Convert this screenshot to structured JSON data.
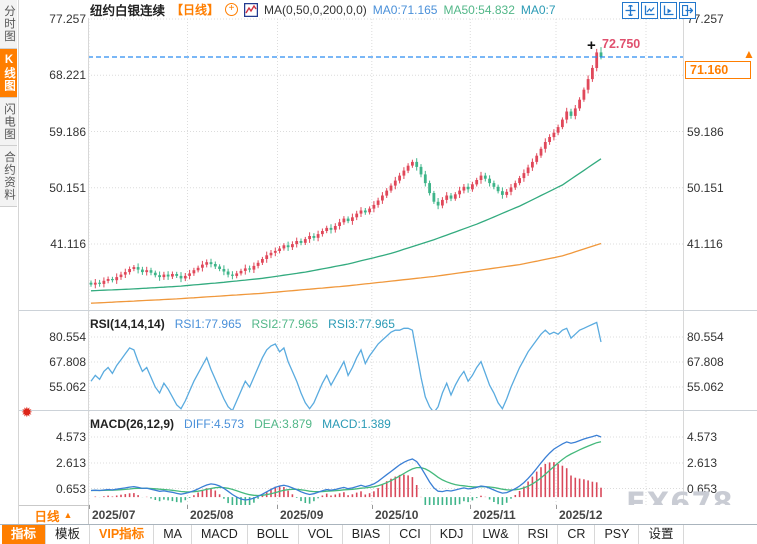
{
  "sidebar": {
    "tabs": [
      {
        "label": "分时图",
        "active": false
      },
      {
        "label": "K线图",
        "active": true
      },
      {
        "label": "闪电图",
        "active": false
      },
      {
        "label": "合约资料",
        "active": false
      }
    ]
  },
  "header": {
    "title": "纽约白银连续",
    "period_tag": "【日线】",
    "plus_icon": "+",
    "ma_label": "MA(0,50,0,200,0,0)",
    "ma0": "MA0:71.165",
    "ma50": "MA50:54.832",
    "ma0b": "MA0:7"
  },
  "toolbar_icons": [
    "pan-crosshair-icon",
    "axis-scale-icon",
    "axis-play-icon",
    "collapse-right-icon"
  ],
  "price_marker": {
    "high_label": "72.750",
    "current_label": "71.160",
    "crosshair": "+",
    "arrow": "▲"
  },
  "rsi_header": {
    "name": "RSI(14,14,14)",
    "rsi1": "RSI1:77.965",
    "rsi2": "RSI2:77.965",
    "rsi3": "RSI3:77.965"
  },
  "macd_header": {
    "name": "MACD(26,12,9)",
    "diff": "DIFF:4.573",
    "dea": "DEA:3.879",
    "macd": "MACD:1.389"
  },
  "xaxis": {
    "period_label": "日线",
    "period_arrow": "▲",
    "months": [
      "2025/07",
      "2025/08",
      "2025/09",
      "2025/10",
      "2025/11",
      "2025/12"
    ]
  },
  "bottom_tabs": [
    {
      "label": "指标",
      "style": "active"
    },
    {
      "label": "模板",
      "style": ""
    },
    {
      "label": "VIP指标",
      "style": "vip"
    },
    {
      "label": "MA",
      "style": ""
    },
    {
      "label": "MACD",
      "style": ""
    },
    {
      "label": "BOLL",
      "style": ""
    },
    {
      "label": "VOL",
      "style": ""
    },
    {
      "label": "BIAS",
      "style": ""
    },
    {
      "label": "CCI",
      "style": ""
    },
    {
      "label": "KDJ",
      "style": ""
    },
    {
      "label": "LW&",
      "style": ""
    },
    {
      "label": "RSI",
      "style": ""
    },
    {
      "label": "CR",
      "style": ""
    },
    {
      "label": "PSY",
      "style": ""
    },
    {
      "label": "设置",
      "style": ""
    }
  ],
  "watermark": "FX678",
  "colors": {
    "accent_orange": "#ff7e00",
    "candle_up": "#e0485a",
    "candle_down": "#3eb489",
    "ma50_line": "#33ab7f",
    "ma200_line": "#f0983c",
    "rsi_line": "#5aabdf",
    "diff_line": "#3a7fd5",
    "dea_line": "#45b97c",
    "hist_up": "#d9485a",
    "hist_down": "#3eb489",
    "price_line": "#2b8cf0",
    "high_label": "#e0506e",
    "grid": "#dcdcdc",
    "icon_blue": "#2277cc"
  },
  "chart_data": {
    "type": "candlestick",
    "instrument": "纽约白银连续",
    "period": "日线",
    "price_axis_ticks": [
      77.257,
      68.221,
      59.186,
      50.151,
      41.116
    ],
    "current_price": 71.16,
    "session_high": 72.75,
    "first_open": 34.9,
    "closes": [
      34.6,
      34.9,
      34.7,
      35.2,
      35.5,
      35.3,
      35.8,
      36.2,
      36.6,
      37.1,
      37.4,
      37.0,
      36.6,
      36.9,
      36.5,
      36.1,
      35.8,
      36.2,
      35.9,
      36.3,
      36.0,
      35.6,
      36.0,
      36.4,
      36.9,
      37.3,
      37.8,
      38.2,
      37.9,
      37.5,
      37.1,
      36.7,
      36.2,
      36.0,
      36.4,
      36.8,
      37.2,
      37.0,
      37.6,
      38.1,
      38.7,
      39.3,
      39.7,
      40.0,
      40.4,
      40.9,
      40.6,
      41.1,
      41.6,
      41.3,
      41.9,
      42.4,
      42.1,
      42.7,
      43.2,
      43.7,
      43.4,
      44.0,
      44.6,
      45.2,
      44.8,
      45.4,
      46.0,
      46.5,
      46.2,
      46.8,
      47.4,
      48.1,
      48.9,
      49.7,
      50.5,
      51.3,
      52.1,
      52.9,
      53.7,
      54.3,
      53.5,
      52.3,
      50.9,
      49.3,
      47.9,
      47.3,
      48.2,
      48.9,
      48.4,
      49.1,
      49.7,
      50.3,
      49.9,
      50.7,
      51.4,
      52.1,
      51.6,
      50.9,
      50.3,
      49.6,
      49.0,
      49.5,
      50.2,
      50.9,
      51.7,
      52.5,
      53.4,
      54.3,
      55.3,
      56.4,
      57.5,
      58.3,
      59.0,
      59.9,
      61.1,
      62.4,
      61.7,
      62.9,
      64.3,
      65.9,
      67.6,
      69.4,
      71.9,
      71.16
    ],
    "wick_pattern": [
      0.35,
      0.6,
      0.45,
      0.55,
      0.4
    ],
    "last_high": 72.75,
    "ma50_points": [
      [
        0,
        33.6
      ],
      [
        10,
        33.9
      ],
      [
        20,
        34.3
      ],
      [
        30,
        34.9
      ],
      [
        40,
        35.6
      ],
      [
        50,
        36.6
      ],
      [
        60,
        37.9
      ],
      [
        70,
        39.6
      ],
      [
        80,
        41.8
      ],
      [
        90,
        44.3
      ],
      [
        100,
        47.2
      ],
      [
        110,
        50.6
      ],
      [
        119,
        54.8
      ]
    ],
    "ma200_points": [
      [
        0,
        31.6
      ],
      [
        20,
        32.3
      ],
      [
        40,
        33.2
      ],
      [
        60,
        34.4
      ],
      [
        80,
        35.9
      ],
      [
        100,
        37.8
      ],
      [
        110,
        39.2
      ],
      [
        119,
        41.2
      ]
    ],
    "month_start_idx": [
      0,
      23,
      44,
      66,
      89,
      109,
      130
    ],
    "rsi": {
      "ticks": [
        80.554,
        67.808,
        55.062
      ],
      "current": 77.965,
      "values": [
        58,
        61,
        59,
        63,
        65,
        62,
        66,
        69,
        72,
        75,
        74,
        68,
        63,
        65,
        60,
        55,
        52,
        57,
        54,
        50,
        46,
        44,
        48,
        53,
        58,
        62,
        66,
        70,
        64,
        59,
        54,
        49,
        45,
        43,
        48,
        53,
        58,
        55,
        60,
        65,
        70,
        74,
        76,
        77,
        73,
        75,
        68,
        63,
        58,
        52,
        47,
        44,
        47,
        52,
        57,
        61,
        56,
        60,
        64,
        68,
        61,
        65,
        70,
        74,
        67,
        71,
        74,
        77,
        79,
        81,
        83,
        84,
        84,
        85,
        85,
        84,
        72,
        60,
        50,
        45,
        42,
        45,
        52,
        57,
        51,
        56,
        60,
        63,
        58,
        61,
        65,
        68,
        62,
        56,
        52,
        47,
        44,
        49,
        55,
        60,
        65,
        69,
        73,
        76,
        79,
        82,
        84,
        82,
        83,
        82,
        84,
        85,
        80,
        82,
        84,
        85,
        86,
        87,
        88,
        78
      ]
    },
    "macd": {
      "ticks": [
        4.573,
        2.613,
        0.653
      ],
      "diff_current": 4.573,
      "dea_current": 3.879,
      "hist_current": 1.389,
      "dea_alpha": 0.18,
      "diff": [
        0.5,
        0.52,
        0.5,
        0.54,
        0.58,
        0.55,
        0.6,
        0.65,
        0.7,
        0.76,
        0.8,
        0.74,
        0.66,
        0.68,
        0.6,
        0.52,
        0.44,
        0.48,
        0.42,
        0.36,
        0.28,
        0.22,
        0.28,
        0.36,
        0.48,
        0.62,
        0.78,
        0.92,
        1.0,
        0.96,
        0.84,
        0.66,
        0.44,
        0.2,
        0.0,
        -0.15,
        -0.22,
        -0.18,
        -0.08,
        0.06,
        0.22,
        0.4,
        0.58,
        0.74,
        0.84,
        0.9,
        0.82,
        0.7,
        0.56,
        0.4,
        0.28,
        0.2,
        0.26,
        0.36,
        0.48,
        0.58,
        0.52,
        0.58,
        0.66,
        0.74,
        0.64,
        0.7,
        0.8,
        0.9,
        0.8,
        0.88,
        1.0,
        1.2,
        1.45,
        1.7,
        1.95,
        2.2,
        2.45,
        2.65,
        2.8,
        2.9,
        2.7,
        2.25,
        1.7,
        1.15,
        0.7,
        0.45,
        0.42,
        0.5,
        0.46,
        0.54,
        0.62,
        0.7,
        0.62,
        0.66,
        0.74,
        0.84,
        0.8,
        0.68,
        0.54,
        0.4,
        0.3,
        0.34,
        0.48,
        0.64,
        0.84,
        1.1,
        1.42,
        1.78,
        2.18,
        2.6,
        3.0,
        3.35,
        3.65,
        3.85,
        4.05,
        4.2,
        4.1,
        4.18,
        4.3,
        4.42,
        4.52,
        4.6,
        4.7,
        4.573
      ]
    }
  }
}
